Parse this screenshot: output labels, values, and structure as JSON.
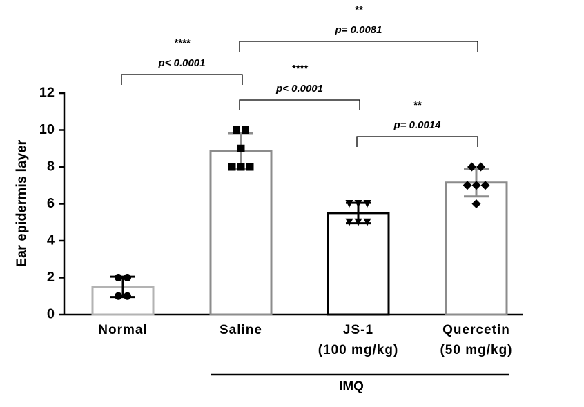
{
  "chart_data": {
    "type": "bar",
    "y_label": "Ear epidermis layer",
    "categories": [
      "Normal",
      "Saline",
      "JS-1",
      "Quercetin"
    ],
    "category_sublabels": [
      null,
      null,
      "(100 mg/kg)",
      "(50 mg/kg)"
    ],
    "values": [
      1.5,
      8.85,
      5.5,
      7.15
    ],
    "errors": [
      0.55,
      0.98,
      0.55,
      0.75
    ],
    "points": [
      [
        2,
        2,
        1,
        1
      ],
      [
        10,
        10,
        9,
        8,
        8,
        8
      ],
      [
        6,
        6,
        6,
        5,
        5,
        5
      ],
      [
        8,
        8,
        7,
        7,
        7,
        6
      ]
    ],
    "marker_shapes": [
      "circle",
      "square",
      "triangle",
      "diamond"
    ],
    "bar_colors": [
      "#b3b3b3",
      "#8c8c8c",
      "#000000",
      "#8c8c8c"
    ],
    "error_colors": [
      "#000000",
      "#8c8c8c",
      "#000000",
      "#8c8c8c"
    ],
    "ylim": [
      0,
      12
    ],
    "yticks": [
      0,
      2,
      4,
      6,
      8,
      10,
      12
    ],
    "group_label": "IMQ",
    "comparisons": [
      {
        "from": "Normal",
        "to": "Saline",
        "stars": "****",
        "p_label": "p< 0.0001"
      },
      {
        "from": "Saline",
        "to": "Quercetin",
        "stars": "**",
        "p_label": "p= 0.0081"
      },
      {
        "from": "Saline",
        "to": "JS-1",
        "stars": "****",
        "p_label": "p< 0.0001"
      },
      {
        "from": "JS-1",
        "to": "Quercetin",
        "stars": "**",
        "p_label": "p= 0.0014"
      }
    ]
  }
}
